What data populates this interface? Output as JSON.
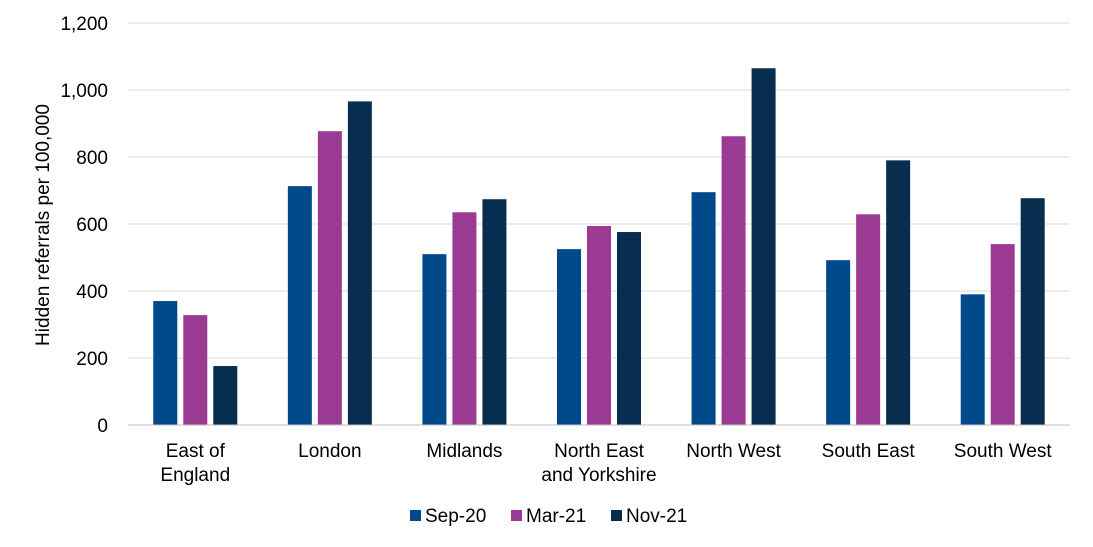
{
  "chart_data": {
    "type": "bar",
    "title": "",
    "xlabel": "",
    "ylabel": "Hidden referrals per 100,000",
    "ylim": [
      0,
      1200
    ],
    "yticks": [
      0,
      200,
      400,
      600,
      800,
      1000,
      1200
    ],
    "ytick_labels": [
      "0",
      "200",
      "400",
      "600",
      "800",
      "1,000",
      "1,200"
    ],
    "grid": true,
    "legend_position": "bottom",
    "categories": [
      [
        "East of",
        "England"
      ],
      [
        "London"
      ],
      [
        "Midlands"
      ],
      [
        "North East",
        "and Yorkshire"
      ],
      [
        "North West"
      ],
      [
        "South East"
      ],
      [
        "South West"
      ]
    ],
    "series": [
      {
        "name": "Sep-20",
        "color": "#004a8c",
        "values": [
          370,
          713,
          510,
          525,
          695,
          492,
          390
        ]
      },
      {
        "name": "Mar-21",
        "color": "#9b3a93",
        "values": [
          328,
          877,
          635,
          594,
          862,
          629,
          540
        ]
      },
      {
        "name": "Nov-21",
        "color": "#072d4f",
        "values": [
          176,
          966,
          674,
          576,
          1065,
          790,
          677
        ]
      }
    ]
  }
}
